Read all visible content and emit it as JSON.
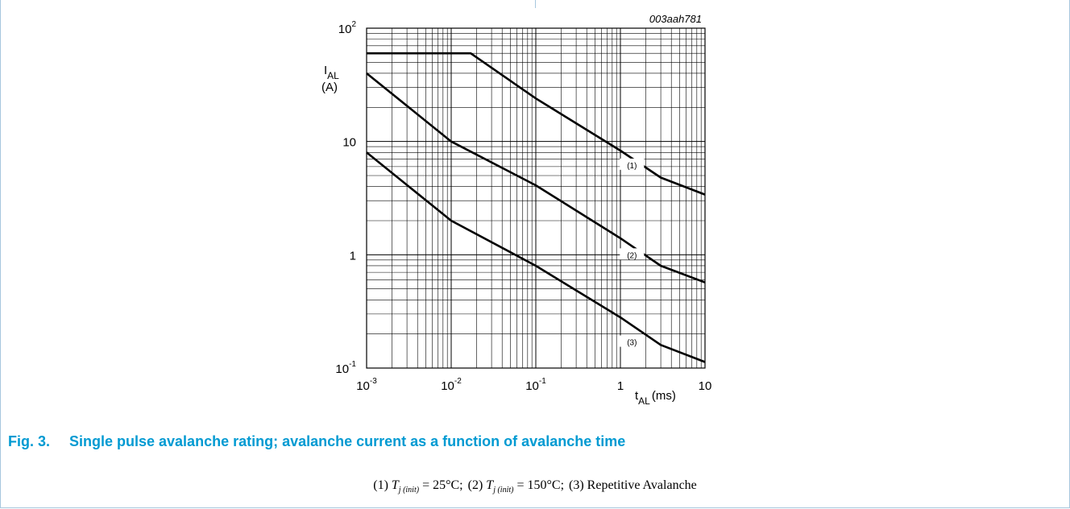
{
  "figure": {
    "label": "Fig. 3.",
    "caption": "Single pulse avalanche rating; avalanche current as a function of avalanche time"
  },
  "chart_data": {
    "type": "line",
    "code": "003aah781",
    "x_axis": {
      "symbol": "t",
      "subscript": "AL",
      "unit": "(ms)",
      "scale": "log",
      "range": [
        0.001,
        10
      ],
      "ticks": [
        {
          "value": 0.001,
          "base": "10",
          "exp": "-3"
        },
        {
          "value": 0.01,
          "base": "10",
          "exp": "-2"
        },
        {
          "value": 0.1,
          "base": "10",
          "exp": "-1"
        },
        {
          "value": 1,
          "base": "1",
          "exp": ""
        },
        {
          "value": 10,
          "base": "10",
          "exp": ""
        }
      ]
    },
    "y_axis": {
      "symbol": "I",
      "subscript": "AL",
      "unit": "(A)",
      "scale": "log",
      "range": [
        0.1,
        100
      ],
      "ticks": [
        {
          "value": 0.1,
          "base": "10",
          "exp": "-1"
        },
        {
          "value": 1,
          "base": "1",
          "exp": ""
        },
        {
          "value": 10,
          "base": "10",
          "exp": ""
        },
        {
          "value": 100,
          "base": "10",
          "exp": "2"
        }
      ]
    },
    "grid": true,
    "series": [
      {
        "name": "(1)",
        "label_at": [
          1.4,
          6.2
        ],
        "points": [
          [
            0.001,
            60
          ],
          [
            0.017,
            60
          ],
          [
            0.1,
            24
          ],
          [
            1,
            8.3
          ],
          [
            3,
            4.8
          ],
          [
            10,
            3.4
          ]
        ]
      },
      {
        "name": "(2)",
        "label_at": [
          1.4,
          1.0
        ],
        "points": [
          [
            0.001,
            40
          ],
          [
            0.01,
            10
          ],
          [
            0.1,
            4.1
          ],
          [
            1,
            1.4
          ],
          [
            3,
            0.8
          ],
          [
            10,
            0.57
          ]
        ]
      },
      {
        "name": "(3)",
        "label_at": [
          1.4,
          0.17
        ],
        "points": [
          [
            0.001,
            8
          ],
          [
            0.01,
            2.0
          ],
          [
            0.1,
            0.8
          ],
          [
            1,
            0.28
          ],
          [
            3,
            0.16
          ],
          [
            10,
            0.113
          ]
        ]
      }
    ]
  },
  "conditions": [
    {
      "id": "(1)",
      "symbol": "T",
      "sub1": "j",
      "sub2": "(init)",
      "rest": " = 25°C;"
    },
    {
      "id": "(2)",
      "symbol": "T",
      "sub1": "j",
      "sub2": "(init)",
      "rest": " = 150°C;"
    },
    {
      "id": "(3)",
      "symbol": "",
      "sub1": "",
      "sub2": "",
      "rest": "Repetitive Avalanche"
    }
  ]
}
